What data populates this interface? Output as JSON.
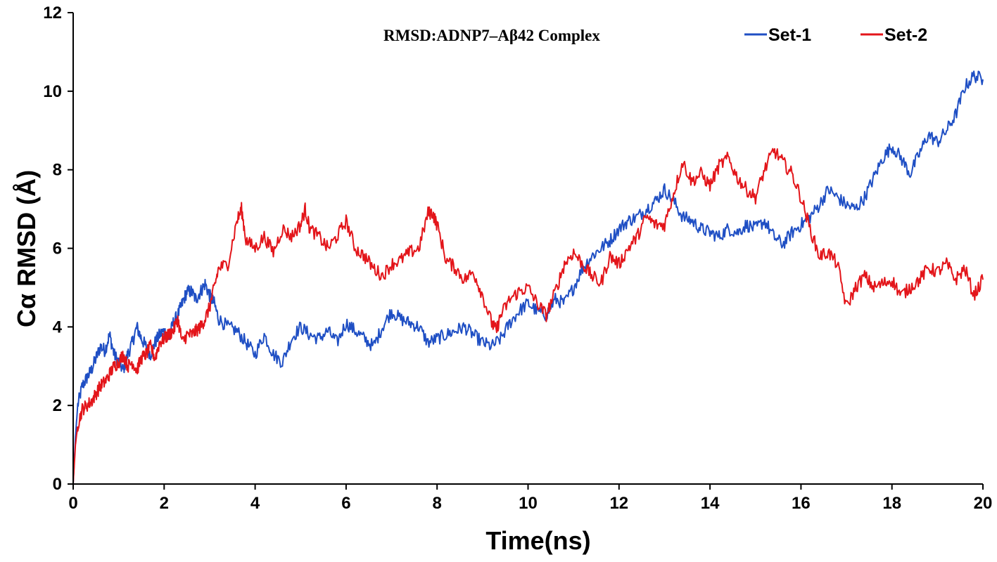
{
  "chart_data": {
    "type": "line",
    "title": "RMSD:ADNP7–Aβ42 Complex",
    "xlabel": "Time(ns)",
    "ylabel": "Cα RMSD (Å)",
    "xlim": [
      0,
      20
    ],
    "ylim": [
      0,
      12
    ],
    "xticks": [
      "0",
      "2",
      "4",
      "6",
      "8",
      "10",
      "12",
      "14",
      "16",
      "18",
      "20"
    ],
    "yticks": [
      "0",
      "2",
      "4",
      "6",
      "8",
      "10",
      "12"
    ],
    "grid": false,
    "legend_position": "top-right",
    "series": [
      {
        "name": "Set-1",
        "color": "#1f4fc4",
        "x": [
          0,
          0.05,
          0.1,
          0.2,
          0.3,
          0.4,
          0.5,
          0.6,
          0.7,
          0.8,
          0.9,
          1.0,
          1.1,
          1.2,
          1.3,
          1.4,
          1.5,
          1.6,
          1.7,
          1.8,
          1.9,
          2.0,
          2.1,
          2.2,
          2.3,
          2.4,
          2.5,
          2.6,
          2.7,
          2.8,
          2.9,
          3.0,
          3.1,
          3.2,
          3.4,
          3.6,
          3.8,
          4.0,
          4.2,
          4.4,
          4.6,
          4.8,
          5.0,
          5.2,
          5.4,
          5.6,
          5.8,
          6.0,
          6.2,
          6.4,
          6.6,
          6.8,
          7.0,
          7.2,
          7.4,
          7.6,
          7.8,
          8.0,
          8.2,
          8.4,
          8.6,
          8.8,
          9.0,
          9.2,
          9.4,
          9.6,
          9.8,
          10.0,
          10.2,
          10.4,
          10.6,
          10.8,
          11.0,
          11.2,
          11.4,
          11.6,
          11.8,
          12.0,
          12.2,
          12.4,
          12.6,
          12.8,
          13.0,
          13.2,
          13.4,
          13.6,
          13.8,
          14.0,
          14.2,
          14.4,
          14.6,
          14.8,
          15.0,
          15.2,
          15.4,
          15.6,
          15.8,
          16.0,
          16.2,
          16.4,
          16.6,
          16.8,
          17.0,
          17.2,
          17.4,
          17.6,
          17.8,
          18.0,
          18.2,
          18.4,
          18.6,
          18.8,
          19.0,
          19.2,
          19.4,
          19.6,
          19.8,
          20.0
        ],
        "y": [
          0.0,
          1.2,
          2.0,
          2.5,
          2.7,
          2.9,
          3.2,
          3.5,
          3.4,
          3.8,
          3.3,
          3.1,
          2.9,
          3.3,
          3.6,
          4.0,
          3.7,
          3.5,
          3.3,
          3.6,
          3.8,
          3.9,
          3.7,
          4.1,
          4.3,
          4.6,
          4.9,
          4.9,
          4.7,
          4.9,
          5.1,
          4.8,
          4.6,
          4.2,
          4.0,
          3.9,
          3.6,
          3.3,
          3.8,
          3.3,
          3.1,
          3.7,
          4.0,
          3.8,
          3.7,
          3.9,
          3.6,
          4.1,
          3.9,
          3.7,
          3.5,
          4.0,
          4.4,
          4.2,
          4.1,
          4.0,
          3.6,
          3.7,
          3.8,
          3.9,
          4.0,
          3.8,
          3.6,
          3.5,
          3.7,
          4.1,
          4.4,
          4.6,
          4.4,
          4.3,
          4.7,
          4.6,
          5.0,
          5.5,
          5.8,
          6.0,
          6.2,
          6.5,
          6.7,
          6.8,
          7.0,
          7.2,
          7.5,
          7.2,
          6.8,
          6.7,
          6.5,
          6.4,
          6.3,
          6.5,
          6.4,
          6.6,
          6.5,
          6.7,
          6.3,
          6.1,
          6.4,
          6.6,
          6.8,
          7.1,
          7.5,
          7.3,
          7.1,
          7.0,
          7.3,
          7.8,
          8.3,
          8.6,
          8.3,
          7.9,
          8.4,
          8.9,
          8.7,
          9.0,
          9.4,
          10.1,
          10.4,
          10.3
        ]
      },
      {
        "name": "Set-2",
        "color": "#e3151a",
        "x": [
          0,
          0.05,
          0.1,
          0.2,
          0.3,
          0.4,
          0.5,
          0.6,
          0.7,
          0.8,
          0.9,
          1.0,
          1.1,
          1.2,
          1.3,
          1.4,
          1.5,
          1.6,
          1.7,
          1.8,
          1.9,
          2.0,
          2.1,
          2.2,
          2.3,
          2.4,
          2.5,
          2.6,
          2.7,
          2.8,
          2.9,
          3.0,
          3.1,
          3.2,
          3.4,
          3.6,
          3.7,
          3.8,
          4.0,
          4.2,
          4.4,
          4.6,
          4.8,
          5.0,
          5.1,
          5.2,
          5.4,
          5.6,
          5.8,
          6.0,
          6.2,
          6.4,
          6.6,
          6.8,
          7.0,
          7.2,
          7.4,
          7.6,
          7.8,
          7.9,
          8.0,
          8.2,
          8.4,
          8.6,
          8.8,
          9.0,
          9.2,
          9.3,
          9.4,
          9.6,
          9.8,
          10.0,
          10.2,
          10.4,
          10.6,
          10.8,
          11.0,
          11.2,
          11.4,
          11.6,
          11.8,
          12.0,
          12.2,
          12.4,
          12.6,
          12.8,
          13.0,
          13.2,
          13.4,
          13.6,
          13.8,
          14.0,
          14.2,
          14.4,
          14.6,
          14.8,
          15.0,
          15.2,
          15.4,
          15.6,
          15.8,
          16.0,
          16.2,
          16.4,
          16.6,
          16.8,
          17.0,
          17.2,
          17.4,
          17.6,
          17.8,
          18.0,
          18.2,
          18.4,
          18.6,
          18.8,
          19.0,
          19.2,
          19.4,
          19.6,
          19.8,
          20.0
        ],
        "y": [
          0.0,
          1.0,
          1.5,
          1.9,
          2.0,
          2.1,
          2.3,
          2.5,
          2.6,
          2.8,
          3.0,
          3.1,
          3.3,
          3.0,
          3.1,
          2.9,
          3.2,
          3.3,
          3.5,
          3.2,
          3.6,
          3.7,
          3.8,
          3.9,
          4.2,
          3.6,
          3.8,
          3.8,
          3.9,
          4.0,
          4.2,
          4.5,
          5.0,
          5.5,
          5.6,
          6.7,
          7.0,
          6.2,
          6.0,
          6.3,
          5.9,
          6.5,
          6.3,
          6.6,
          7.0,
          6.5,
          6.3,
          6.0,
          6.3,
          6.7,
          6.0,
          5.8,
          5.5,
          5.3,
          5.6,
          5.7,
          5.9,
          6.0,
          6.9,
          6.9,
          6.6,
          5.7,
          5.5,
          5.2,
          5.4,
          4.8,
          4.1,
          3.9,
          4.3,
          4.7,
          4.9,
          5.0,
          4.6,
          4.3,
          4.9,
          5.6,
          5.9,
          5.6,
          5.3,
          5.1,
          5.8,
          5.6,
          6.0,
          6.3,
          6.8,
          6.6,
          6.6,
          7.4,
          8.2,
          7.7,
          7.9,
          7.6,
          8.1,
          8.3,
          7.8,
          7.5,
          7.3,
          8.0,
          8.5,
          8.2,
          7.9,
          7.3,
          6.5,
          5.8,
          5.9,
          5.6,
          4.5,
          5.0,
          5.3,
          5.0,
          5.1,
          5.2,
          4.8,
          5.0,
          5.2,
          5.5,
          5.4,
          5.6,
          5.2,
          5.5,
          4.8,
          5.2
        ]
      }
    ]
  }
}
